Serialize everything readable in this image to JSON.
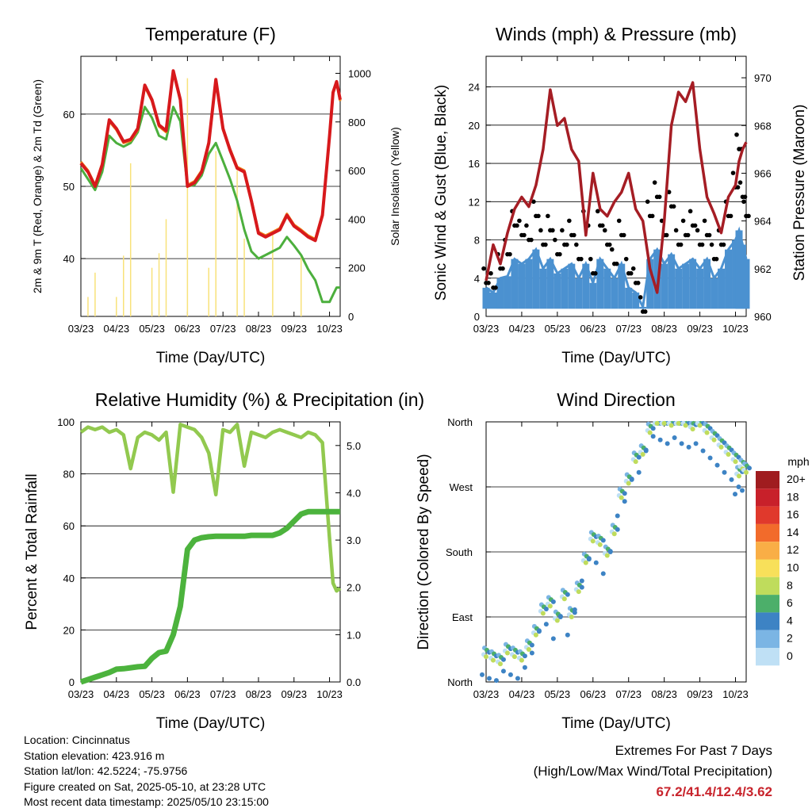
{
  "x_ticks": [
    "03/23",
    "04/23",
    "05/23",
    "06/23",
    "07/23",
    "08/23",
    "09/23",
    "10/23"
  ],
  "chart_data": [
    {
      "type": "line",
      "title": "Temperature (F)",
      "xlabel": "Time (Day/UTC)",
      "ylabel": "2m & 9m T (Red, Orange) & 2m Td (Green)",
      "ylabel_right": "Solar Insolation (Yellow)",
      "ylim": [
        32,
        68
      ],
      "yticks": [
        40,
        50,
        60
      ],
      "ylim_right": [
        0,
        1070
      ],
      "yticks_right": [
        0,
        200,
        400,
        600,
        800,
        1000
      ],
      "x": [
        0,
        0.2,
        0.4,
        0.6,
        0.8,
        1,
        1.2,
        1.4,
        1.6,
        1.8,
        2,
        2.2,
        2.4,
        2.6,
        2.8,
        3,
        3.2,
        3.4,
        3.6,
        3.8,
        4,
        4.2,
        4.4,
        4.6,
        4.8,
        5,
        5.2,
        5.4,
        5.6,
        5.8,
        6,
        6.2,
        6.4,
        6.6,
        6.8,
        7,
        7.1,
        7.2,
        7.3
      ],
      "series": [
        {
          "name": "2m T",
          "color": "#d7191c",
          "values": [
            53.2,
            52,
            50,
            53,
            59.2,
            58,
            56.2,
            56.5,
            58,
            64,
            62,
            58.5,
            57.7,
            66,
            62,
            50,
            50.5,
            52,
            56,
            64.8,
            58,
            55,
            52.5,
            52,
            48,
            43.5,
            43,
            43.5,
            44,
            46,
            44.5,
            43.8,
            43,
            42.5,
            46,
            57,
            63,
            64.5,
            62
          ]
        },
        {
          "name": "9m T",
          "color": "#f08a1c",
          "values": [
            53.4,
            52.2,
            50.2,
            53.2,
            59,
            57.8,
            56,
            56.3,
            57.8,
            63.8,
            61.8,
            58.3,
            57.5,
            65.8,
            61.8,
            50.2,
            50.7,
            52.2,
            56.2,
            64.6,
            57.8,
            55.2,
            52.7,
            52.2,
            48.2,
            43.7,
            43.2,
            43.7,
            44.2,
            46.2,
            44.7,
            44,
            43.2,
            42.7,
            46.2,
            57.2,
            63.2,
            64.3,
            61.8
          ]
        },
        {
          "name": "2m Td",
          "color": "#4caf3d",
          "values": [
            52.5,
            51,
            49.5,
            52,
            57,
            56,
            55.5,
            56,
            57.5,
            61,
            59.5,
            57,
            56.5,
            61,
            59,
            50,
            50.2,
            51.5,
            54.5,
            56,
            53.5,
            51,
            48,
            44,
            41,
            40,
            40.5,
            41,
            41.5,
            43,
            41.8,
            40.5,
            38.5,
            37,
            34,
            34,
            35,
            36,
            36
          ]
        },
        {
          "name": "Solar Insolation",
          "color": "#f8e27a",
          "values": [
            0,
            80,
            180,
            0,
            0,
            80,
            250,
            630,
            0,
            0,
            200,
            260,
            400,
            0,
            0,
            980,
            0,
            0,
            200,
            680,
            0,
            0,
            600,
            320,
            0,
            0,
            0,
            350,
            0,
            0,
            0,
            250,
            0,
            0,
            0,
            0,
            0,
            0,
            0
          ]
        }
      ]
    },
    {
      "type": "scatter",
      "title": "Winds (mph) & Pressure (mb)",
      "xlabel": "Time (Day/UTC)",
      "ylabel": "Sonic Wind & Gust (Blue, Black)",
      "ylabel_right": "Station Pressure (Maroon)",
      "ylim": [
        0,
        27.2
      ],
      "yticks": [
        0,
        4,
        8,
        12,
        16,
        20,
        24
      ],
      "ylim_right": [
        960,
        970.9
      ],
      "yticks_right": [
        960,
        962,
        964,
        966,
        968,
        970
      ],
      "x": [
        0,
        0.2,
        0.4,
        0.6,
        0.8,
        1,
        1.2,
        1.4,
        1.6,
        1.8,
        2,
        2.2,
        2.4,
        2.6,
        2.8,
        3,
        3.2,
        3.4,
        3.6,
        3.8,
        4,
        4.2,
        4.4,
        4.6,
        4.8,
        5,
        5.2,
        5.4,
        5.6,
        5.8,
        6,
        6.2,
        6.4,
        6.6,
        6.8,
        7,
        7.1,
        7.2,
        7.3
      ],
      "series": [
        {
          "name": "Pressure",
          "color": "#a51d24",
          "values": [
            961.5,
            963,
            962.2,
            963.5,
            964.5,
            965,
            964.6,
            965.5,
            967,
            969.5,
            968,
            968.3,
            967,
            966.5,
            963.4,
            966,
            964.5,
            964.2,
            964.8,
            965.2,
            966,
            964.5,
            964,
            962,
            961,
            964,
            968,
            969.4,
            969,
            969.8,
            967,
            965,
            964.3,
            963.5,
            965,
            965.5,
            966.5,
            967,
            967.3
          ]
        },
        {
          "name": "Sonic Wind",
          "color": "#4b91d0",
          "values": [
            3,
            2.5,
            4,
            4.2,
            6,
            5.5,
            6,
            7,
            5,
            6,
            4.5,
            5,
            5.5,
            4,
            5.5,
            3.5,
            6,
            5,
            4,
            5.5,
            3,
            2.5,
            1,
            6,
            7,
            5.5,
            6.5,
            5,
            5.5,
            6,
            5,
            6,
            4,
            5,
            7,
            8,
            9,
            7.5,
            6
          ]
        },
        {
          "name": "Gust",
          "color": "#000000",
          "values": [
            5,
            4.5,
            6.5,
            8,
            11,
            10,
            9.5,
            12,
            9,
            10.5,
            8,
            9,
            10,
            7.5,
            11,
            6,
            11,
            9,
            7,
            10,
            6,
            5,
            2,
            12,
            14,
            10,
            13,
            9,
            10,
            11,
            9,
            10,
            7.5,
            9,
            12,
            15,
            19,
            14,
            12
          ]
        }
      ]
    },
    {
      "type": "line",
      "title": "Relative Humidity (%) & Precipitation (in)",
      "xlabel": "Time (Day/UTC)",
      "ylabel": "Percent & Total Rainfall",
      "ylim": [
        0,
        100
      ],
      "yticks": [
        0,
        20,
        40,
        60,
        80,
        100
      ],
      "ylim_right": [
        0,
        5.5
      ],
      "yticks_right": [
        "0.0",
        "1.0",
        "2.0",
        "3.0",
        "4.0",
        "5.0"
      ],
      "x": [
        0,
        0.2,
        0.4,
        0.6,
        0.8,
        1,
        1.2,
        1.4,
        1.6,
        1.8,
        2,
        2.2,
        2.4,
        2.6,
        2.8,
        3,
        3.2,
        3.4,
        3.6,
        3.8,
        4,
        4.2,
        4.4,
        4.6,
        4.8,
        5,
        5.2,
        5.4,
        5.6,
        5.8,
        6,
        6.2,
        6.4,
        6.6,
        6.8,
        7,
        7.1,
        7.2,
        7.3
      ],
      "series": [
        {
          "name": "Relative Humidity",
          "color": "#92c94f",
          "values": [
            96,
            98,
            97,
            98,
            96,
            97,
            95,
            82,
            94,
            96,
            95,
            93,
            96,
            73,
            99,
            98,
            97,
            94,
            88,
            72,
            97,
            96,
            99,
            83,
            96,
            95,
            94,
            96,
            97,
            96,
            95,
            94,
            96,
            95,
            92,
            55,
            38,
            35,
            36
          ]
        },
        {
          "name": "Total Rainfall",
          "color": "#4cb33d",
          "values": [
            0,
            0.05,
            0.1,
            0.15,
            0.2,
            0.27,
            0.28,
            0.3,
            0.32,
            0.33,
            0.5,
            0.62,
            0.65,
            1,
            1.6,
            2.8,
            3,
            3.05,
            3.07,
            3.08,
            3.08,
            3.08,
            3.08,
            3.08,
            3.1,
            3.1,
            3.1,
            3.1,
            3.15,
            3.25,
            3.4,
            3.55,
            3.6,
            3.6,
            3.6,
            3.6,
            3.6,
            3.6,
            3.6
          ]
        }
      ]
    },
    {
      "type": "scatter",
      "title": "Wind Direction",
      "xlabel": "Time (Day/UTC)",
      "ylabel": "Direction (Colored By Speed)",
      "yticks": [
        "North",
        "East",
        "South",
        "West",
        "North"
      ],
      "ylim": [
        0,
        360
      ],
      "colorbar_title": "mph",
      "colorbar_labels": [
        "20+",
        "18",
        "16",
        "14",
        "12",
        "10",
        "8",
        "6",
        "4",
        "2",
        "0"
      ],
      "colorbar_colors": [
        "#a01c1f",
        "#c8202a",
        "#e0392c",
        "#f26b2b",
        "#f9ae46",
        "#f8e05a",
        "#bfdc5c",
        "#4caf6a",
        "#3d83c4",
        "#7bb5e4",
        "#bfe0f5"
      ],
      "x": [
        0,
        0.2,
        0.4,
        0.6,
        0.8,
        1,
        1.2,
        1.4,
        1.6,
        1.8,
        2,
        2.2,
        2.4,
        2.6,
        2.8,
        3,
        3.2,
        3.4,
        3.6,
        3.8,
        4,
        4.2,
        4.4,
        4.6,
        4.8,
        5,
        5.2,
        5.4,
        5.6,
        5.8,
        6,
        6.2,
        6.4,
        6.6,
        6.8,
        7,
        7.1,
        7.2,
        7.3
      ],
      "values": [
        30,
        25,
        20,
        35,
        30,
        25,
        40,
        60,
        90,
        100,
        80,
        110,
        85,
        120,
        160,
        190,
        185,
        170,
        200,
        250,
        270,
        300,
        310,
        340,
        360,
        355,
        350,
        358,
        350,
        345,
        350,
        340,
        330,
        320,
        310,
        300,
        280,
        290,
        285
      ]
    }
  ],
  "info": {
    "location": "Location: Cincinnatus",
    "elevation": "Station elevation: 423.916 m",
    "latlon": "Station lat/lon: 42.5224; -75.9756",
    "created": "Figure created on Sat, 2025-05-10, at 23:28 UTC",
    "recent": "Most recent data timestamp: 2025/05/10 23:15:00"
  },
  "extremes": {
    "line1": "Extremes For Past 7 Days",
    "line2": "(High/Low/Max Wind/Total Precipitation)",
    "values": "67.2/41.4/12.4/3.62"
  }
}
